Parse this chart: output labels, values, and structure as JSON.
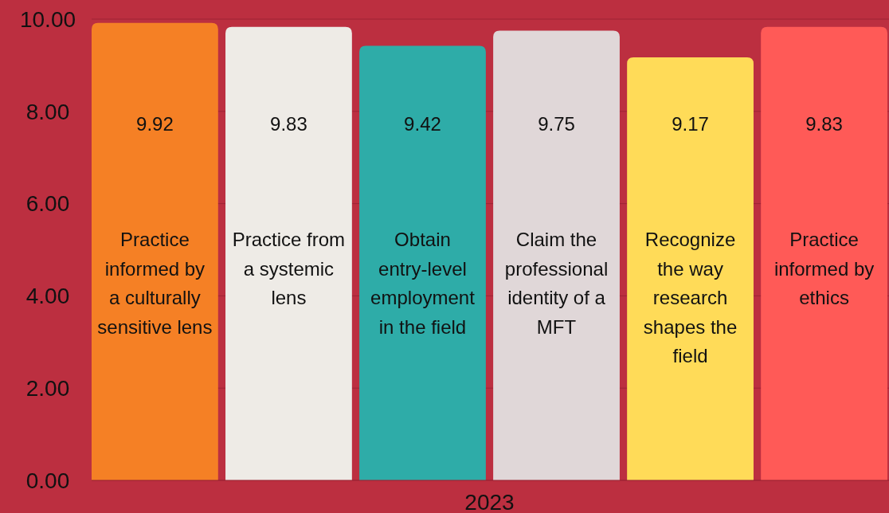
{
  "chart_data": {
    "type": "bar",
    "categories": [
      "2023"
    ],
    "series": [
      {
        "name": "Practice informed by a culturally sensitive lens",
        "color": "#f58025",
        "values": [
          9.92
        ]
      },
      {
        "name": "Practice from a systemic lens",
        "color": "#eeebe6",
        "values": [
          9.83
        ]
      },
      {
        "name": "Obtain entry-level employment in the field",
        "color": "#2eaca8",
        "values": [
          9.42
        ]
      },
      {
        "name": "Claim the professional identity of a MFT",
        "color": "#e0d7d8",
        "values": [
          9.75
        ]
      },
      {
        "name": "Recognize the way research shapes the field",
        "color": "#ffdb58",
        "values": [
          9.17
        ]
      },
      {
        "name": "Practice informed by ethics",
        "color": "#ff5a57",
        "values": [
          9.83
        ]
      }
    ],
    "ylim": [
      0,
      10
    ],
    "yticks": [
      {
        "value": 0,
        "label": "0.00"
      },
      {
        "value": 2,
        "label": "2.00"
      },
      {
        "value": 4,
        "label": "4.00"
      },
      {
        "value": 6,
        "label": "6.00"
      },
      {
        "value": 8,
        "label": "8.00"
      },
      {
        "value": 10,
        "label": "10.00"
      }
    ],
    "grid": "y",
    "data_labels": true
  }
}
